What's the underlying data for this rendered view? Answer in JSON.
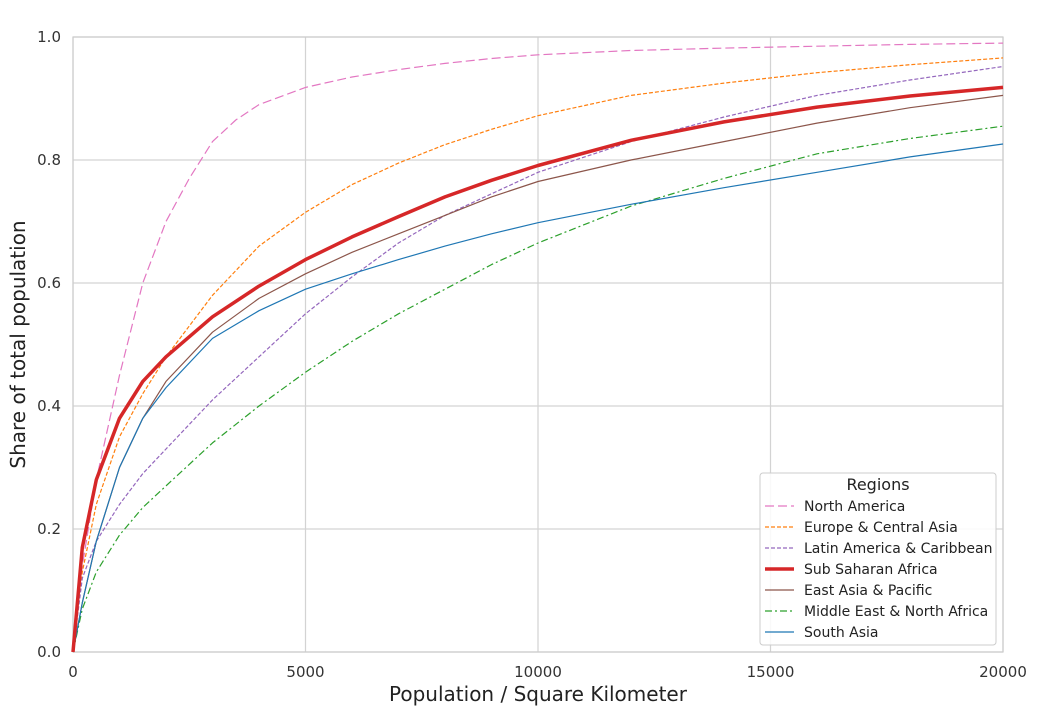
{
  "chart_data": {
    "type": "line",
    "title": "",
    "xlabel": "Population / Square Kilometer",
    "ylabel": "Share of total population",
    "xlim": [
      0,
      20000
    ],
    "ylim": [
      0,
      1.0
    ],
    "xticks": [
      0,
      5000,
      10000,
      15000,
      20000
    ],
    "xtick_labels": [
      "0",
      "5000",
      "10000",
      "15000",
      "20000"
    ],
    "yticks": [
      0,
      0.2,
      0.4,
      0.6,
      0.8,
      1.0
    ],
    "ytick_labels": [
      "0.0",
      "0.2",
      "0.4",
      "0.6",
      "0.8",
      "1.0"
    ],
    "grid": true,
    "legend": {
      "title": "Regions",
      "position": "bottom-right"
    },
    "series": [
      {
        "name": "North America",
        "color": "#e377c2",
        "dash": "long-dash",
        "width": 1.2,
        "x": [
          0,
          200,
          500,
          1000,
          1500,
          2000,
          2500,
          3000,
          3500,
          4000,
          5000,
          6000,
          7000,
          8000,
          9000,
          10000,
          12000,
          14000,
          16000,
          18000,
          20000
        ],
        "y": [
          0,
          0.14,
          0.28,
          0.45,
          0.6,
          0.7,
          0.77,
          0.83,
          0.865,
          0.89,
          0.918,
          0.935,
          0.947,
          0.957,
          0.965,
          0.971,
          0.978,
          0.982,
          0.985,
          0.988,
          0.99
        ]
      },
      {
        "name": "Europe & Central Asia",
        "color": "#ff7f0e",
        "dash": "short-dash",
        "width": 1.2,
        "x": [
          0,
          200,
          500,
          1000,
          1500,
          2000,
          3000,
          4000,
          5000,
          6000,
          7000,
          8000,
          9000,
          10000,
          12000,
          14000,
          16000,
          18000,
          20000
        ],
        "y": [
          0,
          0.13,
          0.24,
          0.35,
          0.42,
          0.48,
          0.58,
          0.66,
          0.715,
          0.76,
          0.795,
          0.825,
          0.85,
          0.872,
          0.905,
          0.925,
          0.942,
          0.955,
          0.966
        ]
      },
      {
        "name": "Latin America & Caribbean",
        "color": "#9467bd",
        "dash": "short-dash",
        "width": 1.2,
        "x": [
          0,
          200,
          500,
          1000,
          1500,
          2000,
          3000,
          4000,
          5000,
          6000,
          7000,
          8000,
          9000,
          10000,
          12000,
          14000,
          16000,
          18000,
          20000
        ],
        "y": [
          0,
          0.12,
          0.18,
          0.24,
          0.29,
          0.33,
          0.41,
          0.48,
          0.55,
          0.61,
          0.665,
          0.71,
          0.745,
          0.78,
          0.83,
          0.87,
          0.905,
          0.93,
          0.952
        ]
      },
      {
        "name": "Sub Saharan Africa",
        "color": "#d62728",
        "dash": "solid",
        "width": 3.5,
        "x": [
          0,
          200,
          500,
          1000,
          1500,
          2000,
          3000,
          4000,
          5000,
          6000,
          7000,
          8000,
          9000,
          10000,
          12000,
          14000,
          16000,
          18000,
          20000
        ],
        "y": [
          0,
          0.17,
          0.28,
          0.38,
          0.44,
          0.48,
          0.545,
          0.595,
          0.638,
          0.675,
          0.708,
          0.74,
          0.767,
          0.791,
          0.832,
          0.862,
          0.886,
          0.904,
          0.918
        ]
      },
      {
        "name": "East Asia & Pacific",
        "color": "#8c564b",
        "dash": "solid",
        "width": 1.2,
        "x": [
          0,
          200,
          500,
          1000,
          1500,
          2000,
          3000,
          4000,
          5000,
          6000,
          7000,
          8000,
          9000,
          10000,
          12000,
          14000,
          16000,
          18000,
          20000
        ],
        "y": [
          0,
          0.08,
          0.18,
          0.3,
          0.38,
          0.44,
          0.52,
          0.575,
          0.615,
          0.65,
          0.68,
          0.71,
          0.74,
          0.765,
          0.8,
          0.83,
          0.86,
          0.885,
          0.905
        ]
      },
      {
        "name": "Middle East & North Africa",
        "color": "#2ca02c",
        "dash": "dash-dot",
        "width": 1.2,
        "x": [
          0,
          200,
          500,
          1000,
          1500,
          2000,
          3000,
          4000,
          5000,
          6000,
          7000,
          8000,
          9000,
          10000,
          12000,
          14000,
          16000,
          18000,
          20000
        ],
        "y": [
          0,
          0.07,
          0.13,
          0.19,
          0.235,
          0.27,
          0.34,
          0.4,
          0.455,
          0.505,
          0.55,
          0.59,
          0.63,
          0.665,
          0.725,
          0.77,
          0.81,
          0.835,
          0.855
        ]
      },
      {
        "name": "South Asia",
        "color": "#1f77b4",
        "dash": "solid",
        "width": 1.2,
        "x": [
          0,
          200,
          500,
          1000,
          1500,
          2000,
          3000,
          4000,
          5000,
          6000,
          7000,
          8000,
          9000,
          10000,
          12000,
          14000,
          16000,
          18000,
          20000
        ],
        "y": [
          0,
          0.08,
          0.18,
          0.3,
          0.38,
          0.43,
          0.51,
          0.555,
          0.59,
          0.615,
          0.638,
          0.66,
          0.68,
          0.698,
          0.728,
          0.755,
          0.78,
          0.805,
          0.826
        ]
      }
    ]
  }
}
